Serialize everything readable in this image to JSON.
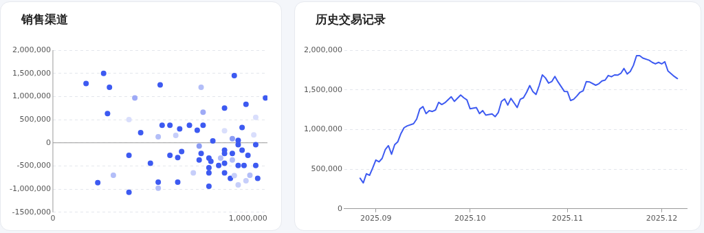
{
  "chart_data": [
    {
      "type": "scatter",
      "title": "销售渠道",
      "marker": "circle",
      "grid": "y",
      "x": [
        170000,
        260000,
        290000,
        280000,
        230000,
        310000,
        390000,
        420000,
        390000,
        390000,
        450000,
        500000,
        550000,
        560000,
        540000,
        540000,
        540000,
        600000,
        600000,
        630000,
        650000,
        640000,
        660000,
        640000,
        700000,
        740000,
        760000,
        770000,
        770000,
        750000,
        760000,
        750000,
        720000,
        800000,
        810000,
        800000,
        800000,
        800000,
        820000,
        850000,
        860000,
        880000,
        880000,
        880000,
        880000,
        880000,
        880000,
        910000,
        920000,
        920000,
        920000,
        930000,
        930000,
        950000,
        950000,
        950000,
        950000,
        970000,
        970000,
        980000,
        990000,
        990000,
        1000000,
        1010000,
        1030000,
        1040000,
        1040000,
        1040000,
        1050000,
        1090000
      ],
      "values": [
        1280000,
        1500000,
        1200000,
        630000,
        -860000,
        -700000,
        500000,
        970000,
        -270000,
        -1070000,
        220000,
        -440000,
        1250000,
        380000,
        130000,
        -850000,
        -980000,
        380000,
        -270000,
        160000,
        300000,
        -320000,
        -190000,
        -850000,
        380000,
        270000,
        1200000,
        660000,
        380000,
        -70000,
        -230000,
        -370000,
        -650000,
        -330000,
        -400000,
        -540000,
        -650000,
        -940000,
        40000,
        -490000,
        -330000,
        750000,
        260000,
        -160000,
        -230000,
        -440000,
        -650000,
        -770000,
        90000,
        -230000,
        -370000,
        1450000,
        -710000,
        50000,
        -40000,
        -910000,
        -490000,
        330000,
        -160000,
        -490000,
        830000,
        -820000,
        -270000,
        -700000,
        170000,
        550000,
        -40000,
        -490000,
        -770000,
        970000
      ],
      "colors": [
        "#3d5af1",
        "#3d5af1",
        "#3d5af1",
        "#3d5af1",
        "#3d5af1",
        "#b3bef8",
        "#d9defc",
        "#9eaaf6",
        "#3d5af1",
        "#3d5af1",
        "#3d5af1",
        "#3d5af1",
        "#3d5af1",
        "#3d5af1",
        "#b3bef8",
        "#3d5af1",
        "#b3bef8",
        "#3d5af1",
        "#3d5af1",
        "#c6cefa",
        "#3d5af1",
        "#3d5af1",
        "#3d5af1",
        "#3d5af1",
        "#3d5af1",
        "#3d5af1",
        "#b3bef8",
        "#9eaaf6",
        "#3d5af1",
        "#8c9cf4",
        "#3d5af1",
        "#3d5af1",
        "#c6cefa",
        "#3d5af1",
        "#3d5af1",
        "#3d5af1",
        "#3d5af1",
        "#3d5af1",
        "#3d5af1",
        "#3d5af1",
        "#b3bef8",
        "#3d5af1",
        "#d9defc",
        "#3d5af1",
        "#3d5af1",
        "#3d5af1",
        "#3d5af1",
        "#3d5af1",
        "#8c9cf4",
        "#3d5af1",
        "#b3bef8",
        "#3d5af1",
        "#c6cefa",
        "#3d5af1",
        "#3d5af1",
        "#c6cefa",
        "#3d5af1",
        "#3d5af1",
        "#3d5af1",
        "#3d5af1",
        "#3d5af1",
        "#c6cefa",
        "#3d5af1",
        "#b3bef8",
        "#d9defc",
        "#d9defc",
        "#3d5af1",
        "#3d5af1",
        "#3d5af1",
        "#3d5af1"
      ],
      "xlim": [
        0,
        1100000
      ],
      "xticks": [
        {
          "value": 0,
          "label": "0"
        },
        {
          "value": 1000000,
          "label": "1,000,000"
        }
      ],
      "ylim": [
        -1500000,
        2000000
      ],
      "yticks": [
        {
          "value": -1500000,
          "label": "-1500,000"
        },
        {
          "value": -1000000,
          "label": "-1,000,000"
        },
        {
          "value": -500000,
          "label": "-500,000"
        },
        {
          "value": 0,
          "label": "0"
        },
        {
          "value": 500000,
          "label": "500,000"
        },
        {
          "value": 1000000,
          "label": "1,000,000"
        },
        {
          "value": 1500000,
          "label": "1,500,000"
        },
        {
          "value": 2000000,
          "label": "2,000,000"
        }
      ]
    },
    {
      "type": "line",
      "title": "历史交易记录",
      "marker": "none",
      "grid": "y",
      "x": [
        "2025-08-27",
        "2025-08-28",
        "2025-08-29",
        "2025-08-30",
        "2025-08-31",
        "2025-09-01",
        "2025-09-02",
        "2025-09-03",
        "2025-09-04",
        "2025-09-05",
        "2025-09-06",
        "2025-09-07",
        "2025-09-08",
        "2025-09-09",
        "2025-09-10",
        "2025-09-11",
        "2025-09-13",
        "2025-09-14",
        "2025-09-15",
        "2025-09-16",
        "2025-09-17",
        "2025-09-18",
        "2025-09-19",
        "2025-09-20",
        "2025-09-21",
        "2025-09-22",
        "2025-09-23",
        "2025-09-25",
        "2025-09-26",
        "2025-09-28",
        "2025-09-29",
        "2025-09-30",
        "2025-10-01",
        "2025-10-03",
        "2025-10-04",
        "2025-10-05",
        "2025-10-06",
        "2025-10-08",
        "2025-10-09",
        "2025-10-10",
        "2025-10-11",
        "2025-10-12",
        "2025-10-13",
        "2025-10-14",
        "2025-10-15",
        "2025-10-16",
        "2025-10-17",
        "2025-10-18",
        "2025-10-19",
        "2025-10-20",
        "2025-10-21",
        "2025-10-22",
        "2025-10-23",
        "2025-10-24",
        "2025-10-25",
        "2025-10-26",
        "2025-10-27",
        "2025-10-28",
        "2025-10-29",
        "2025-10-31",
        "2025-11-01",
        "2025-11-02",
        "2025-11-03",
        "2025-11-04",
        "2025-11-05",
        "2025-11-06",
        "2025-11-07",
        "2025-11-08",
        "2025-11-10",
        "2025-11-11",
        "2025-11-12",
        "2025-11-13",
        "2025-11-14",
        "2025-11-15",
        "2025-11-16",
        "2025-11-17",
        "2025-11-18",
        "2025-11-19",
        "2025-11-20",
        "2025-11-21",
        "2025-11-22",
        "2025-11-23",
        "2025-11-24",
        "2025-11-25",
        "2025-11-27",
        "2025-11-28",
        "2025-11-29",
        "2025-11-30",
        "2025-12-01",
        "2025-12-02",
        "2025-12-03",
        "2025-12-05",
        "2025-12-06"
      ],
      "series": [
        {
          "color": "#3d5af1",
          "values": [
            385000,
            327000,
            442000,
            423000,
            515000,
            615000,
            592000,
            635000,
            746000,
            796000,
            688000,
            808000,
            846000,
            950000,
            1023000,
            1046000,
            1073000,
            1131000,
            1258000,
            1288000,
            1200000,
            1238000,
            1227000,
            1246000,
            1342000,
            1315000,
            1338000,
            1412000,
            1354000,
            1435000,
            1400000,
            1373000,
            1262000,
            1277000,
            1200000,
            1238000,
            1181000,
            1196000,
            1162000,
            1215000,
            1354000,
            1385000,
            1308000,
            1392000,
            1335000,
            1277000,
            1381000,
            1400000,
            1469000,
            1554000,
            1477000,
            1442000,
            1554000,
            1688000,
            1650000,
            1585000,
            1604000,
            1669000,
            1600000,
            1481000,
            1477000,
            1365000,
            1381000,
            1423000,
            1469000,
            1488000,
            1604000,
            1600000,
            1558000,
            1577000,
            1612000,
            1623000,
            1681000,
            1665000,
            1688000,
            1685000,
            1708000,
            1769000,
            1700000,
            1731000,
            1808000,
            1931000,
            1931000,
            1900000,
            1873000,
            1846000,
            1827000,
            1846000,
            1827000,
            1854000,
            1738000,
            1669000,
            1642000
          ]
        }
      ],
      "xlim": [
        "2025-08-22",
        "2025-12-09"
      ],
      "xticks": [
        {
          "value": "2025-09",
          "label": "2025.09"
        },
        {
          "value": "2025-10",
          "label": "2025.10"
        },
        {
          "value": "2025-11",
          "label": "2025.11"
        },
        {
          "value": "2025-12",
          "label": "2025.12"
        }
      ],
      "ylim": [
        0,
        2000000
      ],
      "yticks": [
        {
          "value": 0,
          "label": "0"
        },
        {
          "value": 500000,
          "label": "500,000"
        },
        {
          "value": 1000000,
          "label": "1,000,000"
        },
        {
          "value": 1500000,
          "label": "1,500,000"
        },
        {
          "value": 2000000,
          "label": "2,000,000"
        }
      ]
    }
  ]
}
